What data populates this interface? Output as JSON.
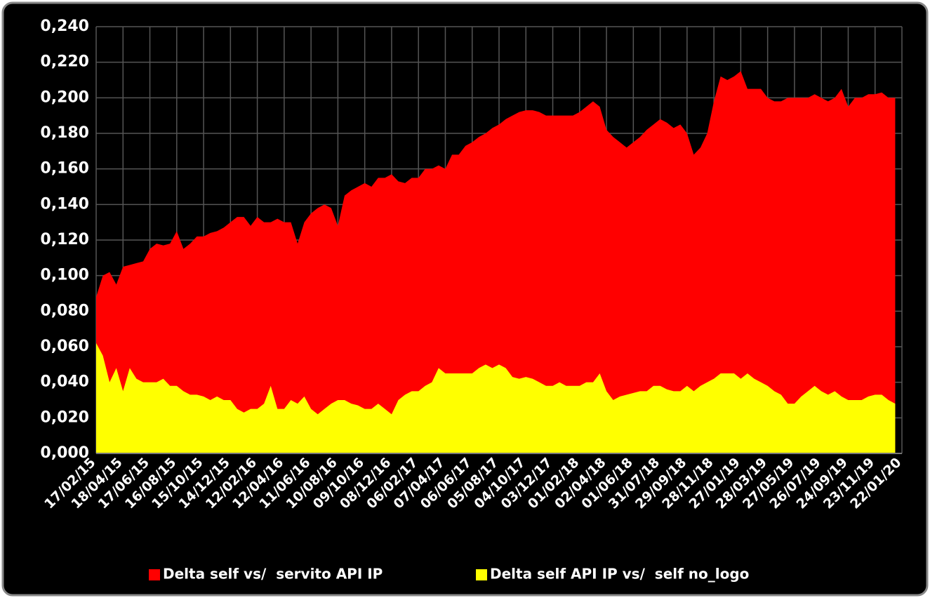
{
  "chart_data": {
    "type": "area",
    "categories": [
      "17/02/15",
      null,
      null,
      null,
      "18/04/15",
      null,
      null,
      null,
      "17/06/15",
      null,
      null,
      null,
      "16/08/15",
      null,
      null,
      null,
      "15/10/15",
      null,
      null,
      null,
      "14/12/15",
      null,
      null,
      null,
      "12/02/16",
      null,
      null,
      null,
      "12/04/16",
      null,
      null,
      null,
      "11/06/16",
      null,
      null,
      null,
      "10/08/16",
      null,
      null,
      null,
      "09/10/16",
      null,
      null,
      null,
      "08/12/16",
      null,
      null,
      null,
      "06/02/17",
      null,
      null,
      null,
      "07/04/17",
      null,
      null,
      null,
      "06/06/17",
      null,
      null,
      null,
      "05/08/17",
      null,
      null,
      null,
      "04/10/17",
      null,
      null,
      null,
      "03/12/17",
      null,
      null,
      null,
      "01/02/18",
      null,
      null,
      null,
      "02/04/18",
      null,
      null,
      null,
      "01/06/18",
      null,
      null,
      null,
      "31/07/18",
      null,
      null,
      null,
      "29/09/18",
      null,
      null,
      null,
      "28/11/18",
      null,
      null,
      null,
      "27/01/19",
      null,
      null,
      null,
      "28/03/19",
      null,
      null,
      null,
      "27/05/19",
      null,
      null,
      null,
      "26/07/19",
      null,
      null,
      null,
      "24/09/19",
      null,
      null,
      null,
      "23/11/19",
      null,
      null,
      null,
      "22/01/20"
    ],
    "series": [
      {
        "name": "Delta self vs/  servito API IP",
        "color": "#ff0000",
        "values": [
          0.088,
          0.1,
          0.102,
          0.095,
          0.105,
          0.106,
          0.107,
          0.108,
          0.115,
          0.118,
          0.117,
          0.118,
          0.125,
          0.115,
          0.118,
          0.122,
          0.122,
          0.124,
          0.125,
          0.127,
          0.13,
          0.133,
          0.133,
          0.128,
          0.133,
          0.13,
          0.13,
          0.132,
          0.13,
          0.13,
          0.118,
          0.13,
          0.135,
          0.138,
          0.14,
          0.138,
          0.128,
          0.145,
          0.148,
          0.15,
          0.152,
          0.15,
          0.155,
          0.155,
          0.157,
          0.153,
          0.152,
          0.155,
          0.155,
          0.16,
          0.16,
          0.162,
          0.16,
          0.168,
          0.168,
          0.173,
          0.175,
          0.178,
          0.18,
          0.183,
          0.185,
          0.188,
          0.19,
          0.192,
          0.193,
          0.193,
          0.192,
          0.19,
          0.19,
          0.19,
          0.19,
          0.19,
          0.192,
          0.195,
          0.198,
          0.195,
          0.182,
          0.178,
          0.175,
          0.172,
          0.175,
          0.178,
          0.182,
          0.185,
          0.188,
          0.186,
          0.183,
          0.185,
          0.18,
          0.168,
          0.172,
          0.18,
          0.198,
          0.212,
          0.21,
          0.212,
          0.215,
          0.205,
          0.205,
          0.205,
          0.2,
          0.198,
          0.198,
          0.2,
          0.2,
          0.2,
          0.2,
          0.202,
          0.2,
          0.198,
          0.2,
          0.205,
          0.195,
          0.2,
          0.2,
          0.202,
          0.202,
          0.203,
          0.2,
          0.2,
          null
        ]
      },
      {
        "name": "Delta self API IP vs/  self no_logo",
        "color": "#ffff00",
        "values": [
          0.062,
          0.055,
          0.04,
          0.048,
          0.035,
          0.048,
          0.042,
          0.04,
          0.04,
          0.04,
          0.042,
          0.038,
          0.038,
          0.035,
          0.033,
          0.033,
          0.032,
          0.03,
          0.032,
          0.03,
          0.03,
          0.025,
          0.023,
          0.025,
          0.025,
          0.028,
          0.038,
          0.025,
          0.025,
          0.03,
          0.028,
          0.032,
          0.025,
          0.022,
          0.025,
          0.028,
          0.03,
          0.03,
          0.028,
          0.027,
          0.025,
          0.025,
          0.028,
          0.025,
          0.022,
          0.03,
          0.033,
          0.035,
          0.035,
          0.038,
          0.04,
          0.048,
          0.045,
          0.045,
          0.045,
          0.045,
          0.045,
          0.048,
          0.05,
          0.048,
          0.05,
          0.048,
          0.043,
          0.042,
          0.043,
          0.042,
          0.04,
          0.038,
          0.038,
          0.04,
          0.038,
          0.038,
          0.038,
          0.04,
          0.04,
          0.045,
          0.035,
          0.03,
          0.032,
          0.033,
          0.034,
          0.035,
          0.035,
          0.038,
          0.038,
          0.036,
          0.035,
          0.035,
          0.038,
          0.035,
          0.038,
          0.04,
          0.042,
          0.045,
          0.045,
          0.045,
          0.042,
          0.045,
          0.042,
          0.04,
          0.038,
          0.035,
          0.033,
          0.028,
          0.028,
          0.032,
          0.035,
          0.038,
          0.035,
          0.033,
          0.035,
          0.032,
          0.03,
          0.03,
          0.03,
          0.032,
          0.033,
          0.033,
          0.03,
          0.028,
          null
        ]
      }
    ],
    "ylim": [
      0,
      0.24
    ],
    "yticks": [
      {
        "value": 0,
        "label": "0,000"
      },
      {
        "value": 0.02,
        "label": "0,020"
      },
      {
        "value": 0.04,
        "label": "0,040"
      },
      {
        "value": 0.06,
        "label": "0,060"
      },
      {
        "value": 0.08,
        "label": "0,080"
      },
      {
        "value": 0.1,
        "label": "0,100"
      },
      {
        "value": 0.12,
        "label": "0,120"
      },
      {
        "value": 0.14,
        "label": "0,140"
      },
      {
        "value": 0.16,
        "label": "0,160"
      },
      {
        "value": 0.18,
        "label": "0,180"
      },
      {
        "value": 0.2,
        "label": "0,200"
      },
      {
        "value": 0.22,
        "label": "0,220"
      },
      {
        "value": 0.24,
        "label": "0,240"
      }
    ],
    "grid": true,
    "legend": "bottom"
  }
}
